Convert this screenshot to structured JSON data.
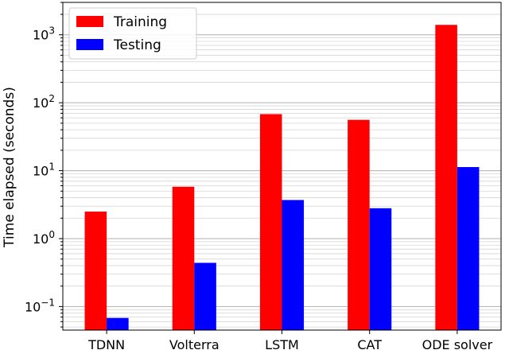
{
  "chart_data": {
    "type": "bar",
    "yscale": "log",
    "categories": [
      "TDNN",
      "Volterra",
      "LSTM",
      "CAT",
      "ODE solver"
    ],
    "series": [
      {
        "name": "Training",
        "color": "#ff0000",
        "values": [
          2.5,
          5.8,
          68,
          56,
          1400
        ]
      },
      {
        "name": "Testing",
        "color": "#0000ff",
        "values": [
          0.068,
          0.44,
          3.7,
          2.8,
          11.3
        ]
      }
    ],
    "ylabel": "Time elapsed (seconds)",
    "ylim": [
      0.045,
      3000
    ],
    "y_ticks": [
      {
        "value": 0.1,
        "base": "10",
        "exp": "−1"
      },
      {
        "value": 1,
        "base": "10",
        "exp": "0"
      },
      {
        "value": 10,
        "base": "10",
        "exp": "1"
      },
      {
        "value": 100,
        "base": "10",
        "exp": "2"
      },
      {
        "value": 1000,
        "base": "10",
        "exp": "3"
      }
    ],
    "grid": true,
    "legend_position": "top-left"
  }
}
